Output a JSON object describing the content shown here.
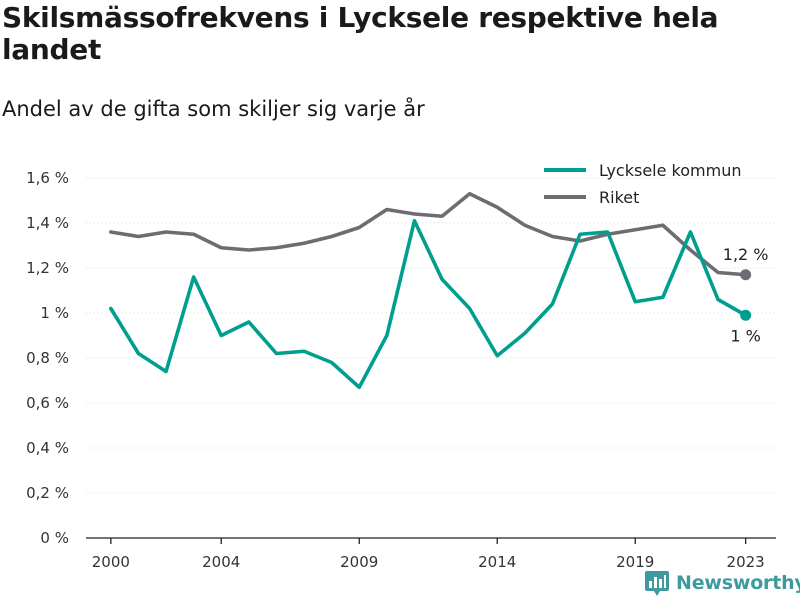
{
  "title": "Skilsmässofrekvens i Lycksele respektive hela landet",
  "subtitle": "Andel av de gifta som skiljer sig varje år",
  "brand": "Newsworthy",
  "colors": {
    "lycksele": "#009e8f",
    "riket": "#6d6c72",
    "grid": "#d9d9d9",
    "brand": "#3f9aa0"
  },
  "chart_data": {
    "type": "line",
    "x": [
      2000,
      2001,
      2002,
      2003,
      2004,
      2005,
      2006,
      2007,
      2008,
      2009,
      2010,
      2011,
      2012,
      2013,
      2014,
      2015,
      2016,
      2017,
      2018,
      2019,
      2020,
      2021,
      2022,
      2023
    ],
    "x_ticks": [
      2000,
      2004,
      2009,
      2014,
      2019,
      2023
    ],
    "x_tick_labels": [
      "2000",
      "2004",
      "2009",
      "2014",
      "2019",
      "2023"
    ],
    "ylim": [
      0,
      1.6
    ],
    "y_ticks": [
      0,
      0.2,
      0.4,
      0.6,
      0.8,
      1.0,
      1.2,
      1.4,
      1.6
    ],
    "y_tick_labels": [
      "0 %",
      "0,2 %",
      "0,4 %",
      "0,6 %",
      "0,8 %",
      "1 %",
      "1,2 %",
      "1,4 %",
      "1,6 %"
    ],
    "grid": "horizontal",
    "legend": "top-right",
    "series": [
      {
        "name": "Lycksele kommun",
        "color": "#009e8f",
        "values": [
          1.02,
          0.82,
          0.74,
          1.16,
          0.9,
          0.96,
          0.82,
          0.83,
          0.78,
          0.67,
          0.9,
          1.41,
          1.15,
          1.02,
          0.81,
          0.91,
          1.04,
          1.35,
          1.36,
          1.05,
          1.07,
          1.36,
          1.06,
          0.99
        ],
        "end_label": "1 %"
      },
      {
        "name": "Riket",
        "color": "#6d6c72",
        "values": [
          1.36,
          1.34,
          1.36,
          1.35,
          1.29,
          1.28,
          1.29,
          1.31,
          1.34,
          1.38,
          1.46,
          1.44,
          1.43,
          1.53,
          1.47,
          1.39,
          1.34,
          1.32,
          1.35,
          1.37,
          1.39,
          1.28,
          1.18,
          1.17
        ],
        "end_label": "1,2 %"
      }
    ]
  }
}
